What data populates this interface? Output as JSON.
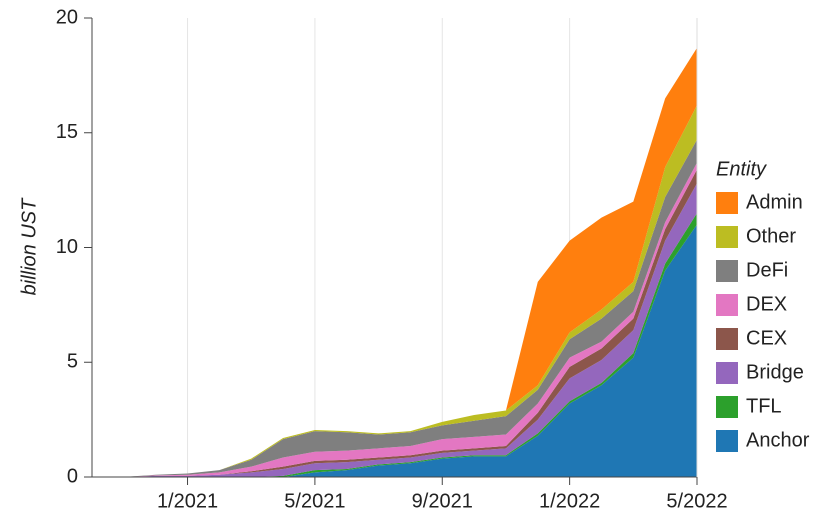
{
  "chart_data": {
    "type": "stacked-area",
    "y_label": "billion UST",
    "legend_title": "Entity",
    "legend_position": "right",
    "grid": "x",
    "x": [
      "10/2020",
      "11/2020",
      "12/2020",
      "1/2021",
      "2/2021",
      "3/2021",
      "4/2021",
      "5/2021",
      "6/2021",
      "7/2021",
      "8/2021",
      "9/2021",
      "10/2021",
      "11/2021",
      "12/2021",
      "1/2022",
      "2/2022",
      "3/2022",
      "4/2022",
      "5/2022"
    ],
    "xlim": [
      "10/2020",
      "5/2022"
    ],
    "xticks": [
      "1/2021",
      "5/2021",
      "9/2021",
      "1/2022",
      "5/2022"
    ],
    "ylim": [
      0,
      20
    ],
    "yticks": [
      0,
      5,
      10,
      15,
      20
    ],
    "series": [
      {
        "name": "Anchor",
        "color": "#1f77b4",
        "values": [
          0,
          0,
          0,
          0,
          0,
          0,
          0,
          0.2,
          0.3,
          0.5,
          0.6,
          0.8,
          0.9,
          0.9,
          1.8,
          3.2,
          4.0,
          5.2,
          9.0,
          11.0
        ]
      },
      {
        "name": "TFL",
        "color": "#2ca02c",
        "values": [
          0,
          0,
          0,
          0,
          0,
          0,
          0.05,
          0.1,
          0.05,
          0.05,
          0.05,
          0.05,
          0.05,
          0.05,
          0.1,
          0.1,
          0.1,
          0.2,
          0.3,
          0.5
        ]
      },
      {
        "name": "Bridge",
        "color": "#9467bd",
        "values": [
          0,
          0,
          0.05,
          0.05,
          0.1,
          0.2,
          0.3,
          0.3,
          0.3,
          0.2,
          0.2,
          0.2,
          0.2,
          0.3,
          0.6,
          1.0,
          1.0,
          1.0,
          1.0,
          1.3
        ]
      },
      {
        "name": "CEX",
        "color": "#8c564b",
        "values": [
          0,
          0,
          0,
          0,
          0,
          0.05,
          0.1,
          0.1,
          0.1,
          0.1,
          0.1,
          0.1,
          0.1,
          0.1,
          0.3,
          0.5,
          0.5,
          0.5,
          0.5,
          0.6
        ]
      },
      {
        "name": "DEX",
        "color": "#e377c2",
        "values": [
          0,
          0,
          0.02,
          0.05,
          0.1,
          0.2,
          0.4,
          0.4,
          0.4,
          0.4,
          0.4,
          0.5,
          0.5,
          0.5,
          0.4,
          0.4,
          0.3,
          0.3,
          0.3,
          0.3
        ]
      },
      {
        "name": "DeFi",
        "color": "#7f7f7f",
        "values": [
          0,
          0,
          0.03,
          0.05,
          0.1,
          0.3,
          0.8,
          0.9,
          0.8,
          0.6,
          0.6,
          0.6,
          0.7,
          0.8,
          0.6,
          0.8,
          1.0,
          0.9,
          1.1,
          1.0
        ]
      },
      {
        "name": "Other",
        "color": "#bcbd22",
        "values": [
          0,
          0,
          0,
          0,
          0,
          0.05,
          0.05,
          0.05,
          0.05,
          0.05,
          0.05,
          0.15,
          0.25,
          0.25,
          0.2,
          0.3,
          0.4,
          0.4,
          1.3,
          1.5
        ]
      },
      {
        "name": "Admin",
        "color": "#ff7f0e",
        "values": [
          0,
          0,
          0,
          0,
          0,
          0,
          0,
          0,
          0,
          0,
          0,
          0,
          0,
          0,
          4.5,
          4.0,
          4.0,
          3.5,
          3.0,
          2.5
        ]
      }
    ]
  }
}
